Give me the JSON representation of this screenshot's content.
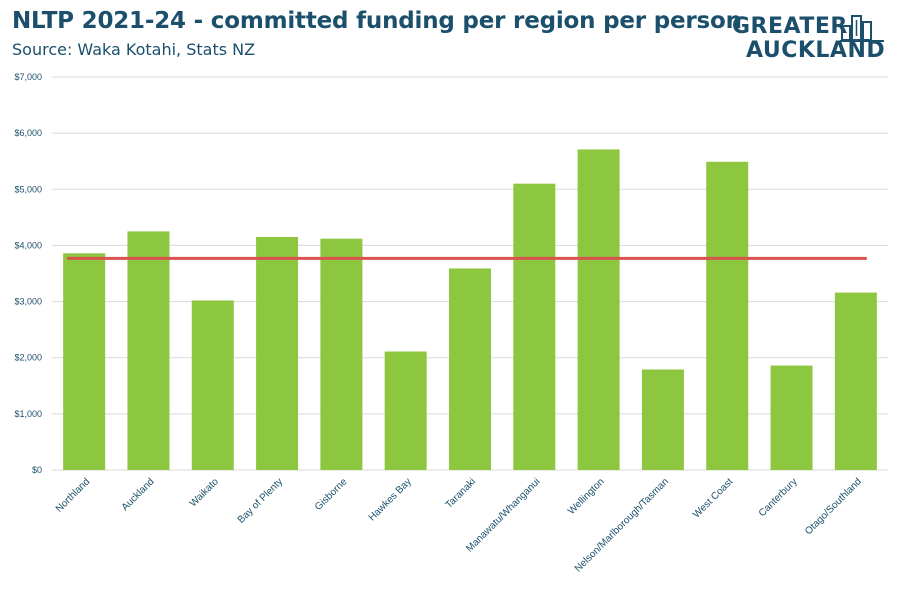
{
  "header": {
    "title": "NLTP 2021-24 - committed funding per region per person",
    "subtitle": "Source: Waka Kotahi, Stats NZ"
  },
  "logo": {
    "line1": "GREATER",
    "line2": "AUCKLAND",
    "icon": "city-buildings-icon",
    "color": "#1b4f6b"
  },
  "chart_data": {
    "type": "bar",
    "title": "NLTP 2021-24 - committed funding per region per person",
    "subtitle": "Source: Waka Kotahi, Stats NZ",
    "categories": [
      "Northland",
      "Auckland",
      "Waikato",
      "Bay of Plenty",
      "Gisborne",
      "Hawkes Bay",
      "Taranaki",
      "Manawatu/Whanganui",
      "Wellington",
      "Nelson/Marlborough/Tasman",
      "West Coast",
      "Canterbury",
      "Otago/Southland"
    ],
    "values": [
      3860,
      4250,
      3020,
      4150,
      4120,
      2110,
      3590,
      5100,
      5710,
      1790,
      5490,
      1860,
      3160
    ],
    "average_line": 3770,
    "ylim": [
      0,
      7000
    ],
    "yticks": [
      0,
      1000,
      2000,
      3000,
      4000,
      5000,
      6000,
      7000
    ],
    "ytick_labels": [
      "$0",
      "$1,000",
      "$2,000",
      "$3,000",
      "$4,000",
      "$5,000",
      "$6,000",
      "$7,000"
    ],
    "xlabel": "",
    "ylabel": "",
    "grid": true,
    "colors": {
      "bar": "#8dc63f",
      "average_line": "#d9534f",
      "grid": "#d9d9d9",
      "tick_label": "#1b4f6b"
    }
  }
}
